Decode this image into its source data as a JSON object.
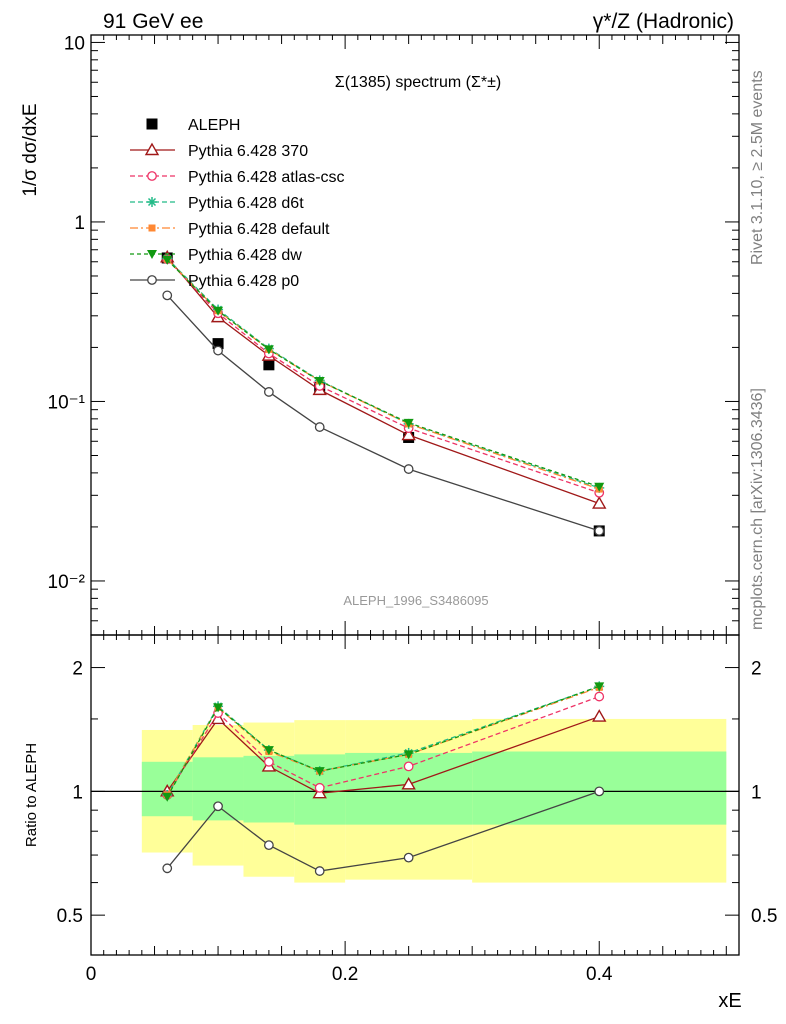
{
  "header": {
    "left": "91 GeV ee",
    "right": "γ*/Z (Hadronic)"
  },
  "side_text": {
    "rivet": "Rivet 3.1.10, ≥ 2.5M events",
    "mcplots": "mcplots.cern.ch [arXiv:1306.3436]"
  },
  "chart_data": [
    {
      "type": "line",
      "title": "Σ(1385) spectrum (Σ*±)",
      "ylabel": "1/σ dσ/dxE",
      "yscale": "log",
      "ylim": [
        0.005,
        11
      ],
      "xlim": [
        0,
        0.51
      ],
      "y_ticks": [
        "10",
        "1",
        "10⁻¹",
        "10⁻²"
      ],
      "analysis_label": "ALEPH_1996_S3486095",
      "legend_position": "top-left",
      "x": [
        0.06,
        0.1,
        0.14,
        0.18,
        0.25,
        0.4
      ],
      "series": [
        {
          "name": "ALEPH",
          "color": "#000000",
          "marker": "square",
          "dash": "",
          "values": [
            0.63,
            0.21,
            0.16,
            0.12,
            0.063,
            0.019
          ]
        },
        {
          "name": "Pythia 6.428 370",
          "color": "#a01818",
          "marker": "triangle-open",
          "dash": "",
          "values": [
            0.635,
            0.295,
            0.18,
            0.116,
            0.065,
            0.027
          ]
        },
        {
          "name": "Pythia 6.428 atlas-csc",
          "color": "#ee3366",
          "marker": "circle-open",
          "dash": "5,3",
          "values": [
            0.62,
            0.31,
            0.185,
            0.122,
            0.071,
            0.031
          ]
        },
        {
          "name": "Pythia 6.428 d6t",
          "color": "#22bb88",
          "marker": "star",
          "dash": "5,3",
          "values": [
            0.625,
            0.325,
            0.197,
            0.131,
            0.075,
            0.033
          ]
        },
        {
          "name": "Pythia 6.428 default",
          "color": "#ff8833",
          "marker": "square-small",
          "dash": "8,3,2,3",
          "values": [
            0.62,
            0.32,
            0.195,
            0.13,
            0.075,
            0.0325
          ]
        },
        {
          "name": "Pythia 6.428 dw",
          "color": "#119911",
          "marker": "triangle-down",
          "dash": "4,3",
          "values": [
            0.615,
            0.32,
            0.195,
            0.13,
            0.076,
            0.0335
          ]
        },
        {
          "name": "Pythia 6.428 p0",
          "color": "#444444",
          "marker": "circle-open",
          "dash": "",
          "values": [
            0.39,
            0.192,
            0.113,
            0.072,
            0.042,
            0.019
          ]
        }
      ]
    },
    {
      "type": "line",
      "ylabel": "Ratio to ALEPH",
      "xlabel": "xE",
      "yscale": "log",
      "ylim": [
        0.4,
        2.4
      ],
      "xlim": [
        0,
        0.51
      ],
      "y_ticks": [
        "2",
        "1",
        "0.5"
      ],
      "x_ticks": [
        "0",
        "0.2",
        "0.4"
      ],
      "reference_line": 1,
      "bands": {
        "edges": [
          0.04,
          0.08,
          0.12,
          0.16,
          0.2,
          0.3,
          0.5
        ],
        "inner_lo": [
          0.87,
          0.85,
          0.84,
          0.83,
          0.83,
          0.83
        ],
        "inner_hi": [
          1.18,
          1.21,
          1.22,
          1.23,
          1.24,
          1.25
        ],
        "outer_lo": [
          0.71,
          0.66,
          0.62,
          0.6,
          0.61,
          0.6
        ],
        "outer_hi": [
          1.41,
          1.45,
          1.47,
          1.49,
          1.49,
          1.5
        ]
      },
      "x": [
        0.06,
        0.1,
        0.14,
        0.18,
        0.25,
        0.4
      ],
      "series": [
        {
          "name": "Pythia 6.428 370",
          "color": "#a01818",
          "marker": "triangle-open",
          "dash": "",
          "values": [
            1.0,
            1.5,
            1.15,
            0.99,
            1.04,
            1.52
          ]
        },
        {
          "name": "Pythia 6.428 atlas-csc",
          "color": "#ee3366",
          "marker": "circle-open",
          "dash": "5,3",
          "values": [
            0.98,
            1.55,
            1.18,
            1.02,
            1.15,
            1.7
          ]
        },
        {
          "name": "Pythia 6.428 d6t",
          "color": "#22bb88",
          "marker": "star",
          "dash": "5,3",
          "values": [
            0.98,
            1.61,
            1.26,
            1.12,
            1.24,
            1.8
          ]
        },
        {
          "name": "Pythia 6.428 default",
          "color": "#ff8833",
          "marker": "square-small",
          "dash": "8,3,2,3",
          "values": [
            0.98,
            1.6,
            1.25,
            1.12,
            1.23,
            1.79
          ]
        },
        {
          "name": "Pythia 6.428 dw",
          "color": "#119911",
          "marker": "triangle-down",
          "dash": "4,3",
          "values": [
            0.97,
            1.6,
            1.26,
            1.12,
            1.23,
            1.8
          ]
        },
        {
          "name": "Pythia 6.428 p0",
          "color": "#444444",
          "marker": "circle-open",
          "dash": "",
          "values": [
            0.65,
            0.92,
            0.74,
            0.64,
            0.69,
            1.0
          ]
        }
      ]
    }
  ]
}
